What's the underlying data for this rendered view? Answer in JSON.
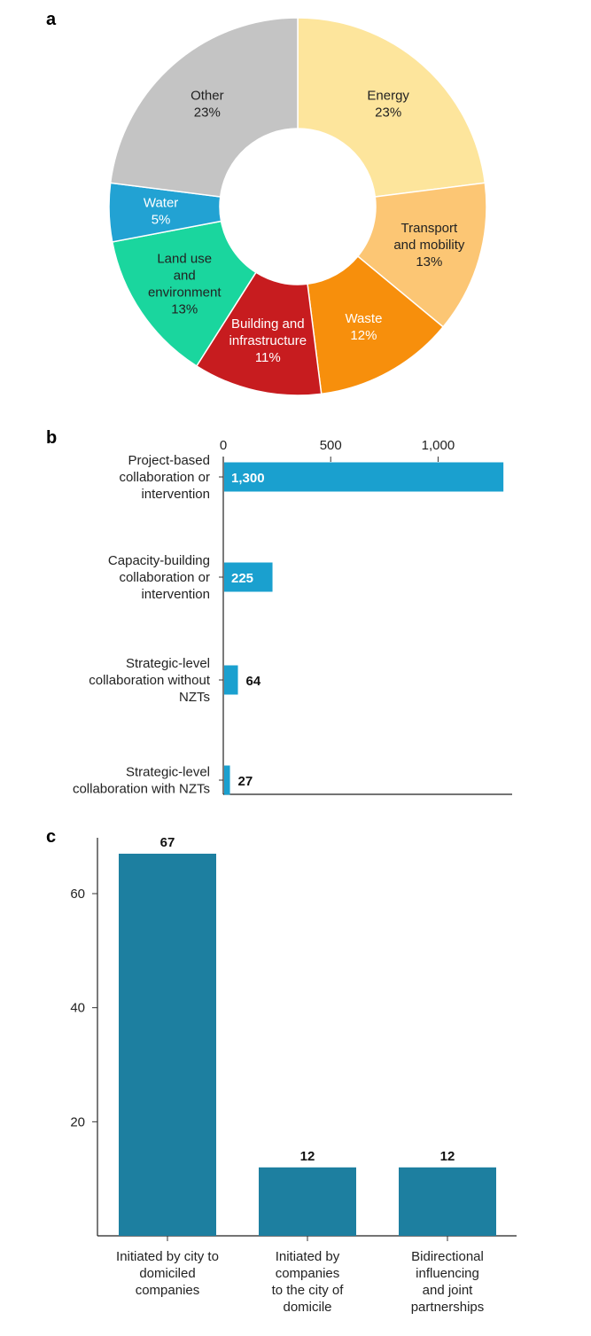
{
  "chart_data": [
    {
      "panel": "a",
      "type": "pie",
      "slices": [
        {
          "label": [
            "Energy",
            "23%"
          ],
          "value": 23,
          "color": "#fde59c",
          "text_color": "#222222"
        },
        {
          "label": [
            "Transport",
            "and mobility",
            "13%"
          ],
          "value": 13,
          "color": "#fcc674",
          "text_color": "#222222"
        },
        {
          "label": [
            "Waste",
            "12%"
          ],
          "value": 12,
          "color": "#f78f0c",
          "text_color": "#ffffff"
        },
        {
          "label": [
            "Building and",
            "infrastructure",
            "11%"
          ],
          "value": 11,
          "color": "#c71c1f",
          "text_color": "#ffffff"
        },
        {
          "label": [
            "Land use",
            "and",
            "environment",
            "13%"
          ],
          "value": 13,
          "color": "#1ad69e",
          "text_color": "#222222"
        },
        {
          "label": [
            "Water",
            "5%"
          ],
          "value": 5,
          "color": "#22a2d3",
          "text_color": "#ffffff"
        },
        {
          "label": [
            "Other",
            "23%"
          ],
          "value": 23,
          "color": "#c4c4c4",
          "text_color": "#222222"
        }
      ]
    },
    {
      "panel": "b",
      "type": "bar",
      "orientation": "horizontal",
      "categories": [
        [
          "Project-based",
          "collaboration or",
          "intervention"
        ],
        [
          "Capacity-building",
          "collaboration or",
          "intervention"
        ],
        [
          "Strategic-level",
          "collaboration without",
          "NZTs"
        ],
        [
          "Strategic-level",
          "collaboration with NZTs"
        ]
      ],
      "values": [
        1300,
        225,
        64,
        27
      ],
      "value_labels": [
        "1,300",
        "225",
        "64",
        "27"
      ],
      "xlim": [
        0,
        1320
      ],
      "ticks": [
        0,
        500,
        1000
      ],
      "tick_labels": [
        "0",
        "500",
        "1,000"
      ],
      "color": "#1aa0cf"
    },
    {
      "panel": "c",
      "type": "bar",
      "orientation": "vertical",
      "categories": [
        [
          "Initiated by city to",
          "domiciled",
          "companies"
        ],
        [
          "Initiated by",
          "companies",
          "to the city of",
          "domicile"
        ],
        [
          "Bidirectional",
          "influencing",
          "and joint",
          "partnerships"
        ]
      ],
      "values": [
        67,
        12,
        12
      ],
      "value_labels": [
        "67",
        "12",
        "12"
      ],
      "ylim": [
        0,
        68
      ],
      "ticks": [
        20,
        40,
        60
      ],
      "tick_labels": [
        "20",
        "40",
        "60"
      ],
      "color": "#1d7fa0"
    }
  ]
}
